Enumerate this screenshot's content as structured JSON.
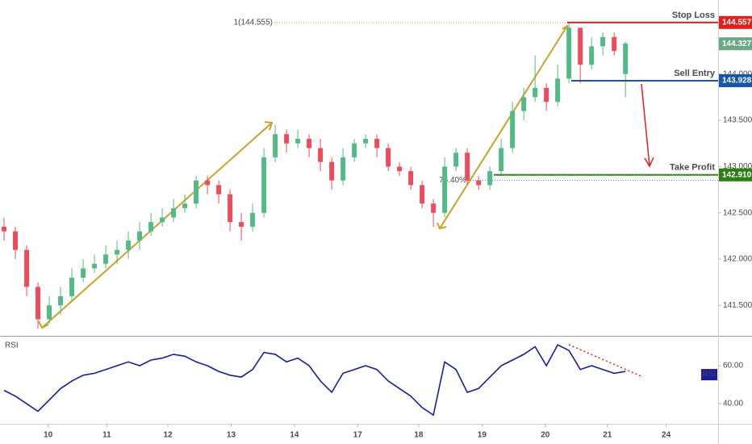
{
  "chart_data": {
    "type": "candlestick",
    "xlim": [
      -0.36,
      63.2
    ],
    "xticks": [
      {
        "value": 3.9,
        "label": "10"
      },
      {
        "value": 9.1,
        "label": "11"
      },
      {
        "value": 14.5,
        "label": "12"
      },
      {
        "value": 20.1,
        "label": "13"
      },
      {
        "value": 25.7,
        "label": "14"
      },
      {
        "value": 31.3,
        "label": "17"
      },
      {
        "value": 36.7,
        "label": "18"
      },
      {
        "value": 42.3,
        "label": "19"
      },
      {
        "value": 47.9,
        "label": "20"
      },
      {
        "value": 53.4,
        "label": "21"
      },
      {
        "value": 58.6,
        "label": "24"
      }
    ],
    "ylim": [
      141.18,
      144.8
    ],
    "yticks": [
      {
        "value": 141.5,
        "label": "141.500"
      },
      {
        "value": 142,
        "label": "142.000"
      },
      {
        "value": 142.5,
        "label": "142.500"
      },
      {
        "value": 143,
        "label": "143.000"
      },
      {
        "value": 143.5,
        "label": "143.500"
      },
      {
        "value": 144,
        "label": "144.000"
      }
    ],
    "up_color": "#53b987",
    "down_color": "#eb4d5c",
    "open": [
      142.35,
      142.3,
      142.1,
      141.7,
      141.35,
      141.5,
      141.6,
      141.8,
      141.9,
      141.95,
      142.05,
      142.1,
      142.2,
      142.3,
      142.4,
      142.45,
      142.55,
      142.6,
      142.85,
      142.8,
      142.7,
      142.4,
      142.35,
      142.5,
      143.1,
      143.35,
      143.25,
      143.3,
      143.2,
      143.05,
      142.85,
      143.1,
      143.25,
      143.3,
      143.2,
      143.0,
      142.95,
      142.8,
      142.6,
      142.5,
      143.0,
      143.15,
      142.85,
      142.8,
      142.95,
      143.2,
      143.6,
      143.75,
      143.85,
      143.7,
      143.95,
      144.5,
      144.1,
      144.3,
      144.4,
      144.0
    ],
    "high": [
      142.45,
      142.35,
      142.15,
      141.75,
      141.6,
      141.7,
      141.9,
      142.0,
      142.05,
      142.15,
      142.2,
      142.3,
      142.4,
      142.5,
      142.55,
      142.65,
      142.7,
      142.9,
      142.9,
      142.85,
      142.75,
      142.5,
      142.6,
      143.2,
      143.45,
      143.4,
      143.4,
      143.35,
      143.3,
      143.1,
      143.2,
      143.3,
      143.35,
      143.35,
      143.25,
      143.05,
      143.0,
      142.85,
      142.65,
      143.1,
      143.2,
      143.2,
      142.9,
      143.0,
      143.3,
      143.7,
      143.85,
      144.2,
      143.9,
      144.1,
      144.56,
      144.5,
      144.4,
      144.45,
      144.45,
      144.35
    ],
    "low": [
      142.2,
      142.0,
      141.6,
      141.25,
      141.3,
      141.4,
      141.55,
      141.75,
      141.85,
      141.9,
      141.95,
      142.0,
      142.1,
      142.25,
      142.35,
      142.4,
      142.5,
      142.55,
      142.7,
      142.6,
      142.3,
      142.2,
      142.3,
      142.45,
      143.05,
      143.15,
      143.2,
      143.1,
      142.95,
      142.75,
      142.8,
      143.05,
      143.2,
      143.1,
      142.95,
      142.9,
      142.75,
      142.55,
      142.35,
      142.45,
      142.95,
      142.8,
      142.75,
      142.75,
      142.9,
      143.15,
      143.5,
      143.7,
      143.6,
      143.65,
      143.9,
      143.9,
      144.05,
      144.2,
      144.2,
      143.75
    ],
    "close": [
      142.3,
      142.1,
      141.7,
      141.35,
      141.5,
      141.6,
      141.8,
      141.9,
      141.95,
      142.05,
      142.1,
      142.2,
      142.3,
      142.4,
      142.45,
      142.55,
      142.6,
      142.85,
      142.8,
      142.7,
      142.4,
      142.35,
      142.5,
      143.1,
      143.35,
      143.25,
      143.3,
      143.2,
      143.05,
      142.85,
      143.1,
      143.25,
      143.3,
      143.2,
      143.0,
      142.95,
      142.8,
      142.6,
      142.5,
      143.0,
      143.15,
      142.85,
      142.8,
      142.95,
      143.2,
      143.6,
      143.75,
      143.85,
      143.7,
      143.95,
      144.5,
      144.1,
      144.3,
      144.4,
      144.25,
      144.33
    ],
    "current_price": 144.327,
    "current_color": "#6aa886",
    "levels": [
      {
        "name": "Stop Loss",
        "value": 144.557,
        "color": "#e0201b"
      },
      {
        "name": "Sell Entry",
        "value": 143.928,
        "color": "#1456a8"
      },
      {
        "name": "Take Profit",
        "value": 142.91,
        "value_label": "142.910",
        "color": "#2e7d18"
      }
    ],
    "fib_levels": [
      {
        "label": "1(144.555)",
        "price": 144.555,
        "color": "#c9a227"
      },
      {
        "label": "76.40%",
        "price": 142.85,
        "color": "#5b8ed6"
      }
    ],
    "rsi": {
      "title": "RSI",
      "badge": "RSI",
      "color": "#1a1aa6",
      "ylim": [
        29.4,
        74.9
      ],
      "yticks": [
        {
          "value": 40,
          "label": "40.00"
        },
        {
          "value": 60,
          "label": "60.00"
        }
      ],
      "values": [
        47,
        44,
        40,
        36,
        42,
        48,
        52,
        55,
        56,
        58,
        60,
        62,
        60,
        63,
        64,
        66,
        65,
        62,
        60,
        57,
        55,
        54,
        58,
        67,
        66,
        62,
        64,
        60,
        52,
        46,
        56,
        58,
        60,
        58,
        52,
        48,
        44,
        38,
        34,
        62,
        58,
        46,
        48,
        54,
        60,
        63,
        66,
        70,
        60,
        71,
        68,
        58,
        60,
        58,
        56,
        57
      ]
    }
  }
}
